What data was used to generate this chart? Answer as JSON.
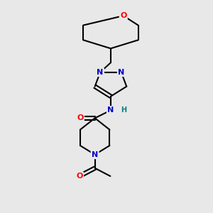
{
  "bg_color": "#e8e8e8",
  "bond_color": "#000000",
  "bond_width": 1.5,
  "atom_colors": {
    "N": "#0000cc",
    "O": "#ff0000",
    "H": "#008080"
  },
  "figsize": [
    3.0,
    3.0
  ],
  "dpi": 100,
  "xlim": [
    0,
    10
  ],
  "ylim": [
    0,
    10
  ]
}
